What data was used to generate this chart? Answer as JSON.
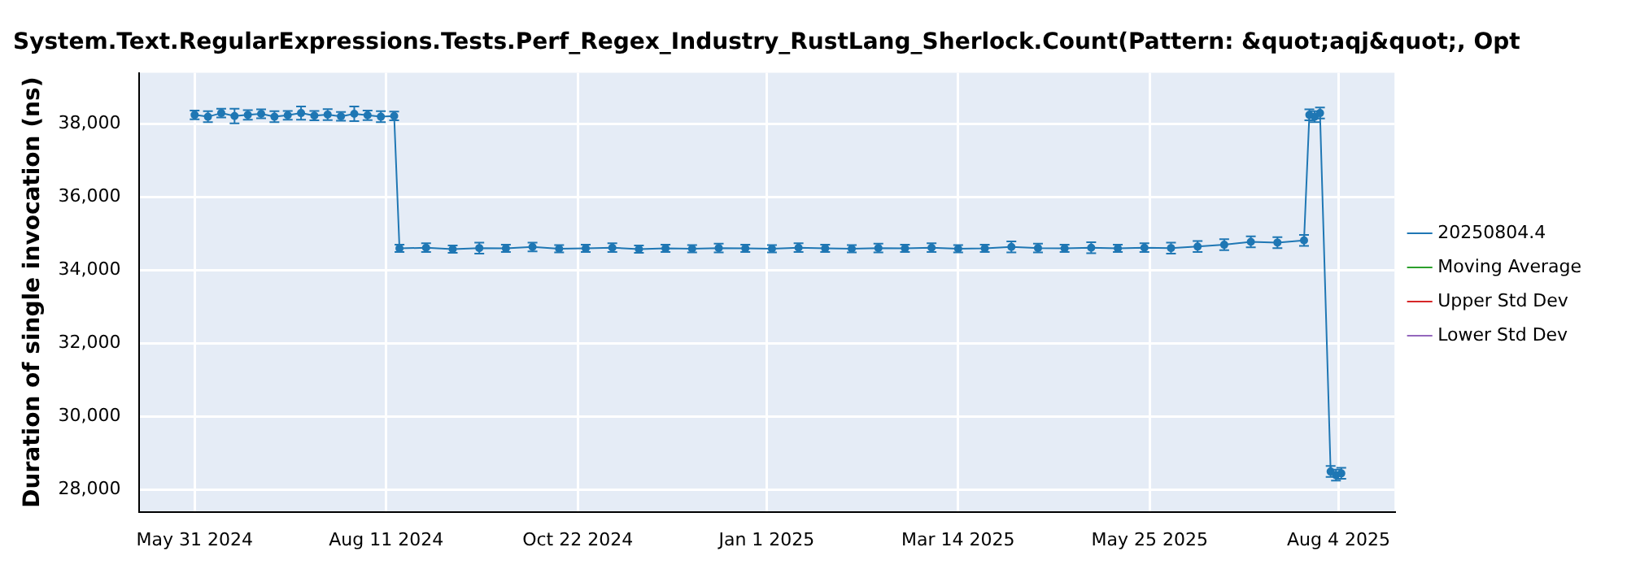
{
  "chart_data": {
    "type": "line",
    "title": "System.Text.RegularExpressions.Tests.Perf_Regex_Industry_RustLang_Sherlock.Count(Pattern: &quot;aqj&quot;, Opt",
    "ylabel": "Duration of single invocation (ns)",
    "xlim": [
      "2024-05-10",
      "2025-08-25"
    ],
    "ylim": [
      27400,
      39400
    ],
    "xticks": [
      {
        "value": "2024-05-31",
        "label": "May 31 2024"
      },
      {
        "value": "2024-08-11",
        "label": "Aug 11 2024"
      },
      {
        "value": "2024-10-22",
        "label": "Oct 22 2024"
      },
      {
        "value": "2025-01-01",
        "label": "Jan 1 2025"
      },
      {
        "value": "2025-03-14",
        "label": "Mar 14 2025"
      },
      {
        "value": "2025-05-25",
        "label": "May 25 2025"
      },
      {
        "value": "2025-08-04",
        "label": "Aug 4 2025"
      }
    ],
    "yticks": [
      {
        "value": 28000,
        "label": "28,000"
      },
      {
        "value": 30000,
        "label": "30,000"
      },
      {
        "value": 32000,
        "label": "32,000"
      },
      {
        "value": 34000,
        "label": "34,000"
      },
      {
        "value": 36000,
        "label": "36,000"
      },
      {
        "value": 38000,
        "label": "38,000"
      }
    ],
    "grid": true,
    "legend": "right",
    "marker": "circle",
    "x": [
      "2024-05-31",
      "2024-06-05",
      "2024-06-10",
      "2024-06-15",
      "2024-06-20",
      "2024-06-25",
      "2024-06-30",
      "2024-07-05",
      "2024-07-10",
      "2024-07-15",
      "2024-07-20",
      "2024-07-25",
      "2024-07-30",
      "2024-08-04",
      "2024-08-09",
      "2024-08-14",
      "2024-08-16",
      "2024-08-26",
      "2024-09-05",
      "2024-09-15",
      "2024-09-25",
      "2024-10-05",
      "2024-10-15",
      "2024-10-25",
      "2024-11-04",
      "2024-11-14",
      "2024-11-24",
      "2024-12-04",
      "2024-12-14",
      "2024-12-24",
      "2025-01-03",
      "2025-01-13",
      "2025-01-23",
      "2025-02-02",
      "2025-02-12",
      "2025-02-22",
      "2025-03-04",
      "2025-03-14",
      "2025-03-24",
      "2025-04-03",
      "2025-04-13",
      "2025-04-23",
      "2025-05-03",
      "2025-05-13",
      "2025-05-23",
      "2025-06-02",
      "2025-06-12",
      "2025-06-22",
      "2025-07-02",
      "2025-07-12",
      "2025-07-22",
      "2025-07-24",
      "2025-07-26",
      "2025-07-28",
      "2025-08-01",
      "2025-08-03",
      "2025-08-05"
    ],
    "series": [
      {
        "name": "20250804.4",
        "color": "#1f77b4",
        "values": [
          38250,
          38200,
          38300,
          38220,
          38250,
          38280,
          38200,
          38240,
          38300,
          38230,
          38260,
          38210,
          38280,
          38240,
          38200,
          38220,
          34600,
          34620,
          34580,
          34610,
          34600,
          34640,
          34590,
          34600,
          34620,
          34580,
          34600,
          34590,
          34610,
          34600,
          34590,
          34620,
          34600,
          34590,
          34610,
          34600,
          34620,
          34590,
          34600,
          34640,
          34610,
          34600,
          34620,
          34600,
          34620,
          34610,
          34650,
          34700,
          34780,
          34760,
          34820,
          38250,
          38200,
          38300,
          28500,
          28400,
          28450
        ],
        "errors": [
          120,
          150,
          120,
          200,
          130,
          120,
          150,
          120,
          180,
          130,
          150,
          120,
          200,
          130,
          150,
          120,
          100,
          120,
          100,
          150,
          100,
          120,
          100,
          100,
          120,
          100,
          100,
          100,
          120,
          100,
          100,
          120,
          100,
          100,
          120,
          100,
          120,
          100,
          100,
          150,
          120,
          100,
          150,
          100,
          120,
          150,
          150,
          150,
          150,
          150,
          150,
          150,
          150,
          150,
          150,
          150,
          150
        ]
      },
      {
        "name": "Moving Average",
        "color": "#2ca02c",
        "values": [
          null,
          null,
          null,
          null,
          null,
          null,
          null,
          null,
          null,
          null,
          null,
          null,
          null,
          null,
          null,
          null,
          null,
          null,
          null,
          null,
          null,
          null,
          null,
          null,
          null,
          null,
          null,
          null,
          null,
          null,
          null,
          null,
          null,
          null,
          null,
          null,
          null,
          null,
          null,
          null,
          null,
          null,
          null,
          null,
          null,
          null,
          null,
          null,
          null,
          null,
          null,
          null,
          null,
          null,
          null,
          null,
          null
        ]
      },
      {
        "name": "Upper Std Dev",
        "color": "#d62728",
        "values": [
          null,
          null,
          null,
          null,
          null,
          null,
          null,
          null,
          null,
          null,
          null,
          null,
          null,
          null,
          null,
          null,
          null,
          null,
          null,
          null,
          null,
          null,
          null,
          null,
          null,
          null,
          null,
          null,
          null,
          null,
          null,
          null,
          null,
          null,
          null,
          null,
          null,
          null,
          null,
          null,
          null,
          null,
          null,
          null,
          null,
          null,
          null,
          null,
          null,
          null,
          null,
          null,
          null,
          null,
          null,
          null,
          null
        ]
      },
      {
        "name": "Lower Std Dev",
        "color": "#9467bd",
        "values": [
          null,
          null,
          null,
          null,
          null,
          null,
          null,
          null,
          null,
          null,
          null,
          null,
          null,
          null,
          null,
          null,
          null,
          null,
          null,
          null,
          null,
          null,
          null,
          null,
          null,
          null,
          null,
          null,
          null,
          null,
          null,
          null,
          null,
          null,
          null,
          null,
          null,
          null,
          null,
          null,
          null,
          null,
          null,
          null,
          null,
          null,
          null,
          null,
          null,
          null,
          null,
          null,
          null,
          null,
          null,
          null,
          null
        ]
      }
    ]
  }
}
